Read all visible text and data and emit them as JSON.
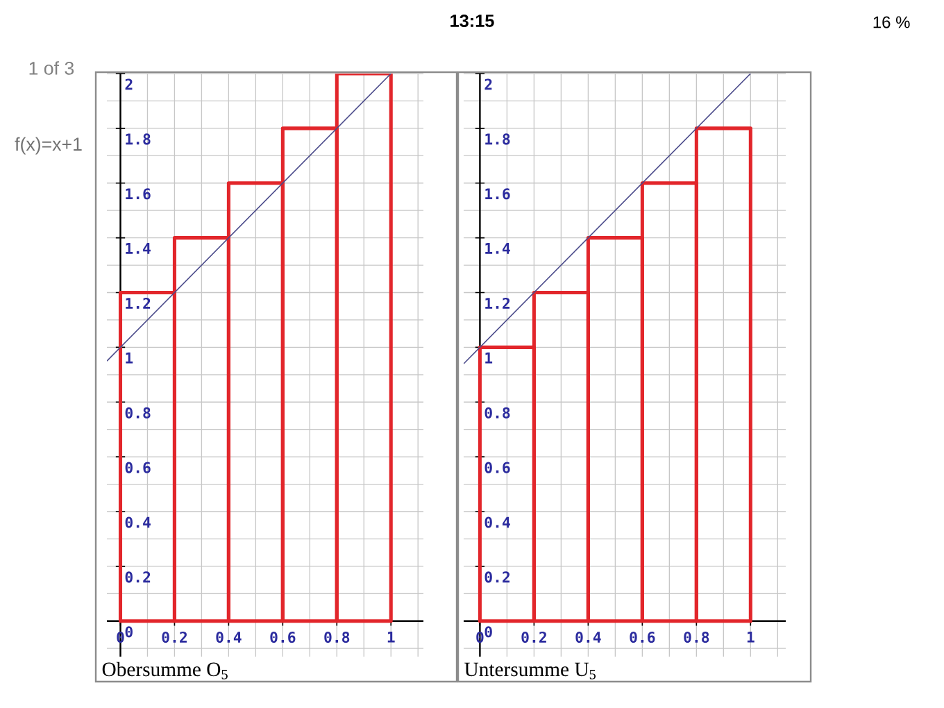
{
  "chart_data": [
    {
      "type": "histogram",
      "title": "Obersumme O$_{5}$",
      "bins": [
        0,
        0.2,
        0.4,
        0.6,
        0.8,
        1
      ],
      "series": [
        {
          "color": "#e2262b",
          "values": [
            1.2,
            1.4,
            1.6,
            1.8,
            2
          ]
        },
        {
          "type": "line",
          "color": "#4a4a8a",
          "x": [
            -0.05,
            1
          ],
          "values": [
            0.95,
            2
          ]
        }
      ],
      "xlim": [
        -0.05,
        1.12
      ],
      "ylim": [
        -0.13,
        2
      ],
      "xticks": [
        0,
        0.2,
        0.4,
        0.6,
        0.8,
        1
      ],
      "yticks": [
        0,
        0.2,
        0.4,
        0.6,
        0.8,
        1,
        1.2,
        1.4,
        1.6,
        1.8,
        2
      ],
      "grid": true,
      "annotations": [
        "13:15",
        "16 %",
        "1 of 3",
        "f(x)=x+1"
      ]
    },
    {
      "type": "histogram",
      "title": "Untersumme U$_{5}$",
      "bins": [
        0,
        0.2,
        0.4,
        0.6,
        0.8,
        1
      ],
      "series": [
        {
          "color": "#e2262b",
          "values": [
            1,
            1.2,
            1.4,
            1.6,
            1.8
          ]
        },
        {
          "type": "line",
          "color": "#4a4a8a",
          "x": [
            -0.06,
            1
          ],
          "values": [
            0.94,
            2
          ]
        }
      ],
      "xlim": [
        -0.06,
        1.13
      ],
      "ylim": [
        -0.13,
        2
      ],
      "xticks": [
        0,
        0.2,
        0.4,
        0.6,
        0.8,
        1
      ],
      "yticks": [
        0,
        0.2,
        0.4,
        0.6,
        0.8,
        1,
        1.2,
        1.4,
        1.6,
        1.8,
        2
      ],
      "grid": true
    }
  ]
}
